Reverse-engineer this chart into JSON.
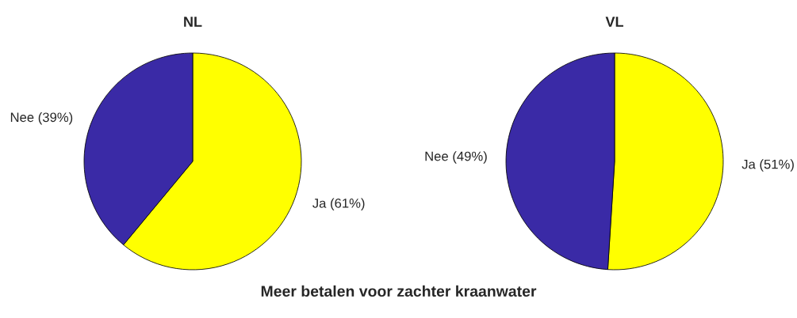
{
  "chart_data": [
    {
      "type": "pie",
      "title": "NL",
      "categories": [
        "Ja (61%)",
        "Nee (39%)"
      ],
      "values": [
        61,
        39
      ],
      "colors": [
        "#ffff00",
        "#3a2aa6"
      ],
      "annotations": [
        "Meer betalen voor zachter kraanwater"
      ]
    },
    {
      "type": "pie",
      "title": "VL",
      "categories": [
        "Ja (51%)",
        "Nee (49%)"
      ],
      "values": [
        51,
        49
      ],
      "colors": [
        "#ffff00",
        "#3a2aa6"
      ]
    }
  ]
}
